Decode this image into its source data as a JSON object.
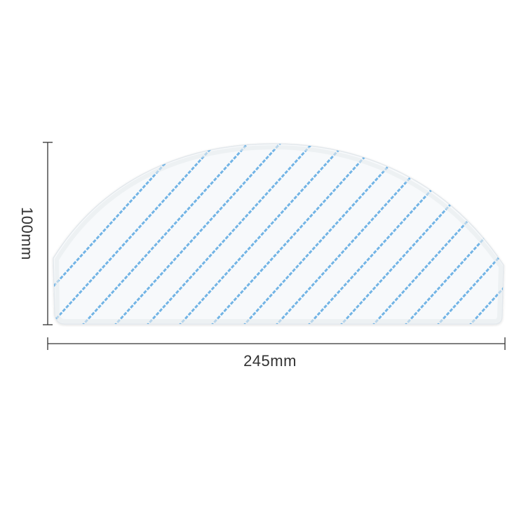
{
  "product": {
    "name_icon": "mop-pad-image",
    "pad_color": "#f7f9fb",
    "stripe_color": "#5ba9e2"
  },
  "dimensions": {
    "height_label": "100mm",
    "width_label": "245mm",
    "line_color": "#333333"
  }
}
